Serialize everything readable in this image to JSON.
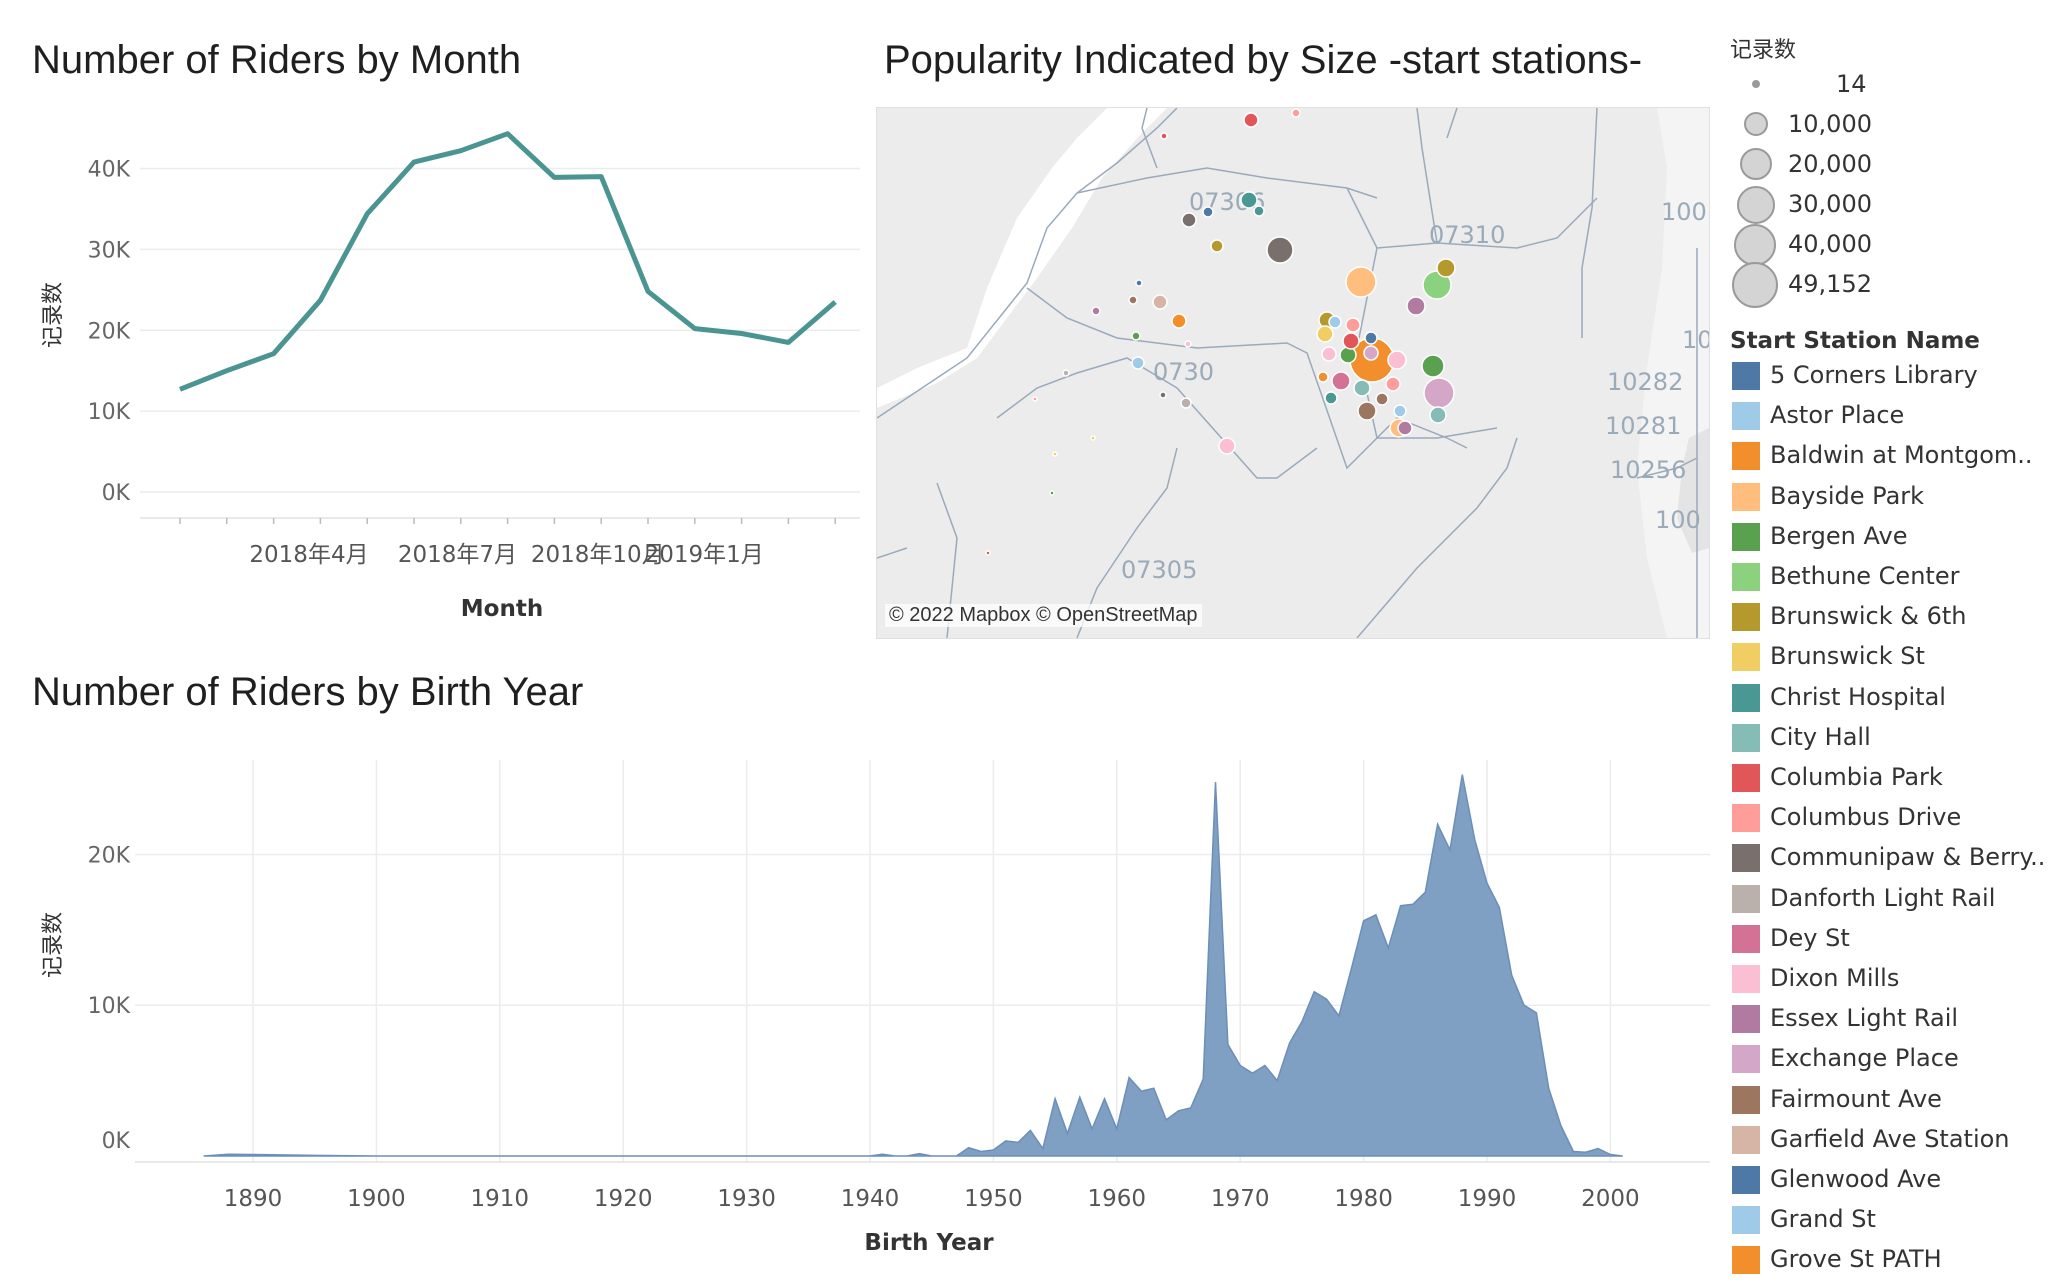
{
  "line_chart": {
    "title": "Number of Riders by  Month",
    "ylabel": "记录数",
    "xlabel": "Month",
    "yticks": [
      "40K",
      "30K",
      "20K",
      "10K",
      "0K"
    ],
    "xticks": [
      "2018年4月",
      "2018年7月",
      "2018年10月",
      "2019年1月"
    ]
  },
  "map": {
    "title": "Popularity Indicated by Size -start stations-",
    "attribution": "© 2022 Mapbox © OpenStreetMap",
    "zip_labels": [
      "07306",
      "07310",
      "0730",
      "07305",
      "10282",
      "10281",
      "10256",
      "100",
      "10",
      "100"
    ]
  },
  "area_chart": {
    "title": "Number of Riders by Birth Year",
    "ylabel": "记录数",
    "xlabel": "Birth Year",
    "yticks": [
      "20K",
      "10K",
      "0K"
    ],
    "xticks": [
      "1890",
      "1900",
      "1910",
      "1920",
      "1930",
      "1940",
      "1950",
      "1960",
      "1970",
      "1980",
      "1990",
      "2000"
    ]
  },
  "size_legend": {
    "title": "记录数",
    "items": [
      "14",
      "10,000",
      "20,000",
      "30,000",
      "40,000",
      "49,152"
    ]
  },
  "color_legend": {
    "title": "Start Station Name",
    "items": [
      {
        "label": "5 Corners Library",
        "color": "#4e79a7"
      },
      {
        "label": "Astor Place",
        "color": "#a0cbe8"
      },
      {
        "label": "Baldwin at Montgom..",
        "color": "#f28e2b"
      },
      {
        "label": "Bayside Park",
        "color": "#ffbe7d"
      },
      {
        "label": "Bergen Ave",
        "color": "#59a14f"
      },
      {
        "label": "Bethune Center",
        "color": "#8cd17d"
      },
      {
        "label": "Brunswick & 6th",
        "color": "#b6992d"
      },
      {
        "label": "Brunswick St",
        "color": "#f1ce63"
      },
      {
        "label": "Christ Hospital",
        "color": "#499894"
      },
      {
        "label": "City Hall",
        "color": "#86bcb6"
      },
      {
        "label": "Columbia Park",
        "color": "#e15759"
      },
      {
        "label": "Columbus Drive",
        "color": "#ff9d9a"
      },
      {
        "label": "Communipaw & Berry..",
        "color": "#79706e"
      },
      {
        "label": "Danforth Light Rail",
        "color": "#bab0ac"
      },
      {
        "label": "Dey St",
        "color": "#d37295"
      },
      {
        "label": "Dixon Mills",
        "color": "#fabfd2"
      },
      {
        "label": "Essex Light Rail",
        "color": "#b07aa1"
      },
      {
        "label": "Exchange Place",
        "color": "#d4a6c8"
      },
      {
        "label": "Fairmount Ave",
        "color": "#9d7660"
      },
      {
        "label": "Garfield Ave Station",
        "color": "#d7b5a6"
      },
      {
        "label": "Glenwood Ave",
        "color": "#4e79a7"
      },
      {
        "label": "Grand St",
        "color": "#a0cbe8"
      },
      {
        "label": "Grove St PATH",
        "color": "#f28e2b"
      }
    ]
  },
  "chart_data": [
    {
      "type": "line",
      "title": "Number of Riders by  Month",
      "xlabel": "Month",
      "ylabel": "记录数",
      "x": [
        "2018-01",
        "2018-02",
        "2018-03",
        "2018-04",
        "2018-05",
        "2018-06",
        "2018-07",
        "2018-08",
        "2018-09",
        "2018-10",
        "2018-11",
        "2018-12",
        "2019-01",
        "2019-02",
        "2019-03"
      ],
      "values": [
        12700,
        15000,
        17100,
        23700,
        34400,
        40800,
        42200,
        44300,
        38900,
        39000,
        24800,
        20200,
        19600,
        18500,
        23500
      ],
      "ylim": [
        0,
        46000
      ],
      "color": "#4a9591"
    },
    {
      "type": "area",
      "title": "Number of Riders by Birth Year",
      "xlabel": "Birth Year",
      "ylabel": "记录数",
      "x": [
        1886,
        1888,
        1890,
        1895,
        1900,
        1940,
        1941,
        1942,
        1943,
        1944,
        1945,
        1946,
        1947,
        1948,
        1949,
        1950,
        1951,
        1952,
        1953,
        1954,
        1955,
        1956,
        1957,
        1958,
        1959,
        1960,
        1961,
        1962,
        1963,
        1964,
        1965,
        1966,
        1967,
        1968,
        1969,
        1970,
        1971,
        1972,
        1973,
        1974,
        1975,
        1976,
        1977,
        1978,
        1979,
        1980,
        1981,
        1982,
        1983,
        1984,
        1985,
        1986,
        1987,
        1988,
        1989,
        1990,
        1991,
        1992,
        1993,
        1994,
        1995,
        1996,
        1997,
        1998,
        1999,
        2000,
        2001
      ],
      "values": [
        0,
        120,
        100,
        40,
        0,
        0,
        120,
        0,
        0,
        150,
        0,
        0,
        0,
        550,
        300,
        400,
        1000,
        900,
        1700,
        500,
        3800,
        1500,
        3900,
        1800,
        3800,
        1800,
        5200,
        4300,
        4500,
        2400,
        3000,
        3200,
        5100,
        24800,
        7400,
        6000,
        5500,
        6000,
        5000,
        7500,
        8900,
        10900,
        10400,
        9300,
        12400,
        15600,
        16000,
        13800,
        16600,
        16700,
        17500,
        22000,
        20300,
        25300,
        21000,
        18100,
        16500,
        12000,
        10000,
        9500,
        4500,
        2000,
        300,
        250,
        500,
        100,
        0
      ],
      "ylim": [
        0,
        26000
      ],
      "color": "#7f9fc3"
    },
    {
      "type": "scatter",
      "title": "Popularity Indicated by Size -start stations-",
      "size_legend": [
        14,
        10000,
        20000,
        30000,
        40000,
        49152
      ],
      "series": [
        {
          "name": "Grove St PATH",
          "value": 49152
        },
        {
          "name": "Bayside Park",
          "value": 20000
        },
        {
          "name": "Exchange Place",
          "value": 20000
        },
        {
          "name": "Bethune Center",
          "value": 15000
        },
        {
          "name": "Communipaw & Berry..",
          "value": 14000
        }
      ]
    }
  ]
}
